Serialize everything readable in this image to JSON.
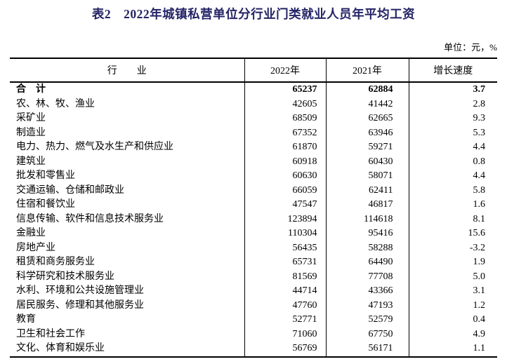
{
  "title": "表2　2022年城镇私营单位分行业门类就业人员年平均工资",
  "unit_note": "单位：元，%",
  "colors": {
    "title": "#232366",
    "text": "#000000",
    "border": "#000000"
  },
  "table": {
    "columns": [
      "行　　业",
      "2022年",
      "2021年",
      "增长速度"
    ],
    "rows": [
      {
        "industry": "合　计",
        "y2022": "65237",
        "y2021": "62884",
        "growth": "3.7",
        "bold": true
      },
      {
        "industry": "农、林、牧、渔业",
        "y2022": "42605",
        "y2021": "41442",
        "growth": "2.8",
        "bold": false
      },
      {
        "industry": "采矿业",
        "y2022": "68509",
        "y2021": "62665",
        "growth": "9.3",
        "bold": false
      },
      {
        "industry": "制造业",
        "y2022": "67352",
        "y2021": "63946",
        "growth": "5.3",
        "bold": false
      },
      {
        "industry": "电力、热力、燃气及水生产和供应业",
        "y2022": "61870",
        "y2021": "59271",
        "growth": "4.4",
        "bold": false
      },
      {
        "industry": "建筑业",
        "y2022": "60918",
        "y2021": "60430",
        "growth": "0.8",
        "bold": false
      },
      {
        "industry": "批发和零售业",
        "y2022": "60630",
        "y2021": "58071",
        "growth": "4.4",
        "bold": false
      },
      {
        "industry": "交通运输、仓储和邮政业",
        "y2022": "66059",
        "y2021": "62411",
        "growth": "5.8",
        "bold": false
      },
      {
        "industry": "住宿和餐饮业",
        "y2022": "47547",
        "y2021": "46817",
        "growth": "1.6",
        "bold": false
      },
      {
        "industry": "信息传输、软件和信息技术服务业",
        "y2022": "123894",
        "y2021": "114618",
        "growth": "8.1",
        "bold": false
      },
      {
        "industry": "金融业",
        "y2022": "110304",
        "y2021": "95416",
        "growth": "15.6",
        "bold": false
      },
      {
        "industry": "房地产业",
        "y2022": "56435",
        "y2021": "58288",
        "growth": "-3.2",
        "bold": false
      },
      {
        "industry": "租赁和商务服务业",
        "y2022": "65731",
        "y2021": "64490",
        "growth": "1.9",
        "bold": false
      },
      {
        "industry": "科学研究和技术服务业",
        "y2022": "81569",
        "y2021": "77708",
        "growth": "5.0",
        "bold": false
      },
      {
        "industry": "水利、环境和公共设施管理业",
        "y2022": "44714",
        "y2021": "43366",
        "growth": "3.1",
        "bold": false
      },
      {
        "industry": "居民服务、修理和其他服务业",
        "y2022": "47760",
        "y2021": "47193",
        "growth": "1.2",
        "bold": false
      },
      {
        "industry": "教育",
        "y2022": "52771",
        "y2021": "52579",
        "growth": "0.4",
        "bold": false
      },
      {
        "industry": "卫生和社会工作",
        "y2022": "71060",
        "y2021": "67750",
        "growth": "4.9",
        "bold": false
      },
      {
        "industry": "文化、体育和娱乐业",
        "y2022": "56769",
        "y2021": "56171",
        "growth": "1.1",
        "bold": false
      }
    ]
  }
}
